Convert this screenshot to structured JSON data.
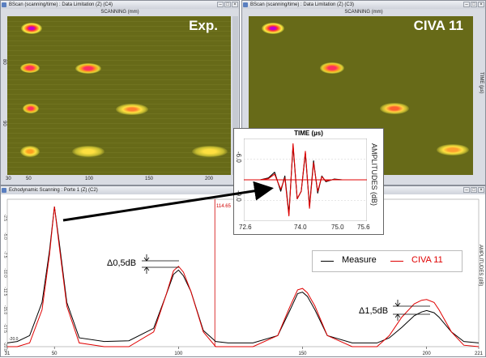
{
  "left_bscan": {
    "title": "BScan (scanning/time) : Data Limitation (Z) (C4)",
    "scan_axis_label": "SCANNING (mm)",
    "overlay_label": "Exp.",
    "x_ticks": [
      "30",
      "50",
      "100",
      "150",
      "200"
    ],
    "y_ticks": [
      "90",
      "80"
    ]
  },
  "right_bscan": {
    "title": "BScan (scanning/time) : Data Limitation (Z) (C3)",
    "scan_axis_label": "SCANNING (mm)",
    "overlay_label": "CIVA 11",
    "time_label": "TIME (µs)"
  },
  "echodynamic": {
    "title": "Echodynamic Scanning : Porte 1 (Z) (C2)",
    "cursor_value": "114.65",
    "amplitude_label": "AMPLITUDES (dB)",
    "x_ticks": [
      "31",
      "50",
      "100",
      "150",
      "200",
      "221"
    ],
    "y_ticks": [
      "-2.5",
      "-5.0",
      "-7.5",
      "-10.0",
      "-12.5",
      "-15.0",
      "-17.5",
      "-20.0"
    ],
    "bottom_left_value": "-20.0",
    "annotation_1": "Δ0,5dB",
    "annotation_2": "Δ1,5dB",
    "legend": [
      {
        "name": "Measure",
        "color": "#000000"
      },
      {
        "name": "CIVA 11",
        "color": "#e00000"
      }
    ]
  },
  "ascan_inset": {
    "title": "TIME (µs)",
    "y_label": "AMPLITUDES (dB)",
    "y_ticks": [
      "-6.0",
      "-9.0"
    ],
    "x_ticks": [
      "72.6",
      "74.0",
      "75.0",
      "75.6"
    ]
  },
  "chart_data": [
    {
      "type": "line",
      "title": "",
      "xlabel": "",
      "ylabel": "AMPLITUDES (dB)",
      "xlim": [
        31,
        221
      ],
      "ylim": [
        -20,
        0
      ],
      "series": [
        {
          "name": "Measure",
          "color": "#000000",
          "x": [
            31,
            35,
            40,
            45,
            48,
            50,
            52,
            55,
            60,
            70,
            80,
            90,
            95,
            98,
            100,
            102,
            105,
            110,
            115,
            120,
            130,
            140,
            145,
            148,
            150,
            152,
            155,
            160,
            170,
            180,
            185,
            190,
            195,
            198,
            200,
            203,
            205,
            210,
            215,
            221
          ],
          "y": [
            -19.5,
            -19.3,
            -18.5,
            -14,
            -7,
            -1,
            -6,
            -14,
            -18.8,
            -19.3,
            -19.2,
            -17.5,
            -13,
            -10.2,
            -9.6,
            -10.4,
            -12.5,
            -17.8,
            -19.3,
            -19.5,
            -19.5,
            -18.5,
            -15,
            -12.8,
            -12.6,
            -13.2,
            -15,
            -18.5,
            -19.5,
            -19.5,
            -18.8,
            -17.4,
            -15.8,
            -15.3,
            -15.1,
            -15.4,
            -16,
            -18,
            -19.3,
            -19.5
          ]
        },
        {
          "name": "CIVA 11",
          "color": "#e00000",
          "x": [
            31,
            35,
            40,
            45,
            48,
            50,
            52,
            55,
            60,
            70,
            80,
            90,
            95,
            98,
            100,
            102,
            105,
            110,
            115,
            120,
            130,
            140,
            145,
            148,
            150,
            152,
            155,
            160,
            170,
            180,
            185,
            190,
            195,
            198,
            200,
            203,
            205,
            210,
            215,
            221
          ],
          "y": [
            -20,
            -20,
            -19.5,
            -15,
            -7.5,
            -1,
            -6.5,
            -14.5,
            -19.5,
            -20,
            -20,
            -18,
            -13,
            -9.7,
            -9.1,
            -9.9,
            -12.5,
            -18,
            -20,
            -20,
            -20,
            -18.5,
            -14.5,
            -12.3,
            -12.1,
            -12.7,
            -14.5,
            -18.5,
            -20,
            -20,
            -18.5,
            -16,
            -14.2,
            -13.7,
            -13.6,
            -14,
            -15,
            -18,
            -19.8,
            -20
          ]
        }
      ]
    },
    {
      "type": "line",
      "title": "TIME (µs)",
      "xlabel": "",
      "ylabel": "AMPLITUDES (dB)",
      "xlim": [
        72.6,
        75.6
      ],
      "series": [
        {
          "name": "Measure",
          "color": "#000000",
          "x": [
            72.6,
            73.0,
            73.2,
            73.35,
            73.5,
            73.6,
            73.7,
            73.8,
            73.9,
            74.0,
            74.1,
            74.2,
            74.3,
            74.4,
            74.5,
            74.6,
            74.8,
            75.0,
            75.2,
            75.6
          ],
          "y": [
            0,
            0,
            0.05,
            0.2,
            -0.3,
            0.1,
            -0.9,
            0.9,
            -0.5,
            -0.3,
            0.7,
            -0.7,
            0.5,
            -0.35,
            0.1,
            -0.05,
            0.02,
            0,
            0,
            0
          ]
        },
        {
          "name": "CIVA 11",
          "color": "#e00000",
          "x": [
            72.6,
            73.0,
            73.2,
            73.35,
            73.5,
            73.6,
            73.7,
            73.8,
            73.9,
            74.0,
            74.1,
            74.2,
            74.3,
            74.4,
            74.5,
            74.6,
            74.8,
            75.0,
            75.2,
            75.6
          ],
          "y": [
            0,
            0,
            0.03,
            0.15,
            -0.25,
            0.05,
            -0.95,
            0.95,
            -0.5,
            -0.3,
            0.75,
            -0.75,
            0.45,
            -0.3,
            0.08,
            -0.03,
            0.01,
            0,
            0,
            0
          ]
        }
      ]
    }
  ],
  "colors": {
    "bscan_bg": "#676a18",
    "spot_core": "#c000d0",
    "ring": "#ff3030",
    "halo": "#ffee40"
  }
}
